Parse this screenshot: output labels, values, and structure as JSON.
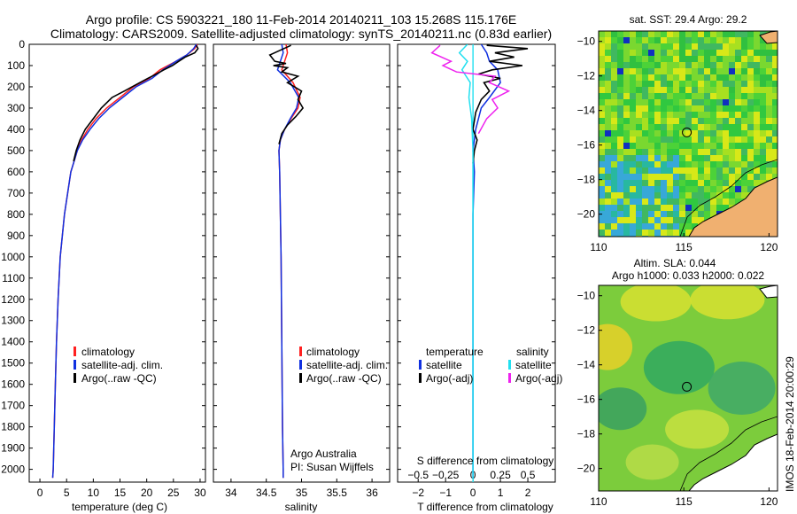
{
  "title": {
    "line1": "Argo profile: CS 5903221_180 11-Feb-2014 20140211_103 15.268S 115.176E",
    "line2": "Climatology: CARS2009. Satellite-adjusted climatology: synTS_20140211.nc (0.83d earlier)"
  },
  "side_stamp": "IMOS 18-Feb-2014 20:00:29",
  "colors": {
    "clim": "#ff2020",
    "satadj": "#1030e0",
    "argo": "#000000",
    "sat_salinity": "#22e0f0",
    "argo_adj_salinity": "#ee22ee"
  },
  "chart_data": [
    {
      "id": "temperature",
      "type": "line",
      "xlabel": "temperature (deg C)",
      "ylabel": "",
      "xlim": [
        -2,
        31
      ],
      "ylim": [
        2060,
        0
      ],
      "xticks": [
        0,
        5,
        10,
        15,
        20,
        25,
        30
      ],
      "yticks": [
        0,
        100,
        200,
        300,
        400,
        500,
        600,
        700,
        800,
        900,
        1000,
        1100,
        1200,
        1300,
        1400,
        1500,
        1600,
        1700,
        1800,
        1900,
        2000
      ],
      "legend": [
        "climatology",
        "satellite-adj. clim.",
        "Argo(..raw -QC)"
      ],
      "series": [
        {
          "name": "climatology",
          "color_key": "clim",
          "x": [
            29.5,
            29.0,
            27.5,
            25.5,
            22.5,
            20.5,
            17.5,
            15.0,
            12.5,
            10.5,
            9.0,
            7.8,
            7.0,
            6.4,
            5.8,
            5.2,
            4.6,
            4.2,
            3.8,
            3.4,
            3.1,
            2.9,
            2.7,
            2.5,
            2.4
          ],
          "y": [
            0,
            20,
            50,
            80,
            120,
            160,
            200,
            250,
            300,
            350,
            400,
            450,
            500,
            550,
            600,
            700,
            800,
            900,
            1000,
            1200,
            1400,
            1600,
            1800,
            2000,
            2040
          ]
        },
        {
          "name": "satellite-adj. clim.",
          "color_key": "satadj",
          "x": [
            29.3,
            28.8,
            27.5,
            25.5,
            23.0,
            21.0,
            18.0,
            15.5,
            13.0,
            11.0,
            9.4,
            8.0,
            7.0,
            6.4,
            5.8,
            5.2,
            4.6,
            4.2,
            3.8,
            3.4,
            3.1,
            2.9,
            2.7,
            2.5,
            2.4
          ],
          "y": [
            0,
            20,
            50,
            80,
            120,
            160,
            200,
            250,
            300,
            350,
            400,
            450,
            500,
            550,
            600,
            700,
            800,
            900,
            1000,
            1200,
            1400,
            1600,
            1800,
            2000,
            2040
          ]
        },
        {
          "name": "Argo(..raw -QC)",
          "color_key": "argo",
          "x": [
            29.3,
            29.6,
            29.0,
            27.2,
            26.0,
            24.8,
            23.2,
            21.8,
            20.2,
            18.0,
            15.8,
            13.5,
            11.5,
            10.0,
            8.5,
            7.5,
            6.8,
            6.3
          ],
          "y": [
            5,
            20,
            40,
            60,
            80,
            100,
            120,
            140,
            160,
            190,
            220,
            250,
            300,
            350,
            400,
            450,
            500,
            550
          ]
        }
      ]
    },
    {
      "id": "salinity",
      "type": "line",
      "xlabel": "salinity",
      "ylabel": "",
      "xlim": [
        33.75,
        36.25
      ],
      "ylim": [
        2060,
        0
      ],
      "xticks": [
        34,
        34.5,
        35,
        35.5,
        36
      ],
      "legend": [
        "climatology",
        "satellite-adj. clim.",
        "Argo(..raw -QC)"
      ],
      "annotation": [
        "Argo Australia",
        "PI: Susan Wijffels"
      ],
      "series": [
        {
          "name": "climatology",
          "color_key": "clim",
          "x": [
            34.78,
            34.8,
            34.76,
            34.72,
            34.88,
            34.98,
            34.95,
            34.85,
            34.76,
            34.7,
            34.68,
            34.69,
            34.7,
            34.71,
            34.72,
            34.73,
            34.74,
            34.74
          ],
          "y": [
            0,
            40,
            80,
            120,
            180,
            250,
            300,
            350,
            400,
            450,
            500,
            600,
            800,
            1000,
            1400,
            1800,
            2000,
            2040
          ]
        },
        {
          "name": "satellite-adj. clim.",
          "color_key": "satadj",
          "x": [
            34.72,
            34.74,
            34.7,
            34.66,
            34.84,
            34.96,
            34.93,
            34.84,
            34.76,
            34.7,
            34.68,
            34.69,
            34.7,
            34.71,
            34.72,
            34.73,
            34.74,
            34.74
          ],
          "y": [
            0,
            40,
            80,
            120,
            180,
            250,
            300,
            350,
            400,
            450,
            500,
            600,
            800,
            1000,
            1400,
            1800,
            2000,
            2040
          ]
        },
        {
          "name": "Argo(..raw -QC)",
          "color_key": "argo",
          "x": [
            34.85,
            34.55,
            34.62,
            34.78,
            34.6,
            34.8,
            34.72,
            34.95,
            34.8,
            35.0,
            34.95,
            35.02,
            34.92,
            34.8,
            34.72,
            34.68
          ],
          "y": [
            5,
            50,
            80,
            90,
            100,
            110,
            130,
            150,
            180,
            220,
            260,
            300,
            340,
            380,
            420,
            470
          ]
        }
      ]
    },
    {
      "id": "difference",
      "type": "line",
      "xlabel": "T difference from climatology",
      "x2label": "S difference from climatology",
      "xlim": [
        -2.75,
        3.0
      ],
      "ylim": [
        2060,
        0
      ],
      "xticks": [
        -2,
        -1,
        0,
        1,
        2
      ],
      "xtick_labels": [
        "−2",
        "−1",
        "0",
        "1",
        "2"
      ],
      "x2ticks_pos": [
        -2,
        -1,
        0,
        1,
        2
      ],
      "x2tick_labels": [
        "−0.5",
        "−0.25",
        "0",
        "0.25",
        "0.5"
      ],
      "legend_temperature": {
        "title": "temperature",
        "items": [
          "satellite",
          "Argo(-adj)"
        ]
      },
      "legend_salinity": {
        "title": "salinity",
        "items": [
          "satellite",
          "Argo(-adj)"
        ]
      },
      "series": [
        {
          "name": "temperature satellite",
          "color_key": "satadj",
          "x": [
            0.3,
            0.5,
            0.6,
            0.9,
            1.0,
            0.6,
            0.3,
            0.1,
            0.0,
            0.05,
            0.0,
            0.0,
            0.0,
            0.0
          ],
          "y": [
            0,
            40,
            80,
            120,
            180,
            250,
            300,
            400,
            500,
            600,
            800,
            1200,
            1600,
            2040
          ]
        },
        {
          "name": "temperature Argo(-adj)",
          "color_key": "argo",
          "x": [
            0.5,
            2.0,
            0.8,
            1.5,
            0.6,
            1.8,
            0.7,
            0.2,
            1.0,
            0.4,
            0.6,
            0.3,
            0.1,
            0.0,
            0.15,
            0.05,
            0.0
          ],
          "y": [
            5,
            20,
            40,
            60,
            80,
            100,
            120,
            140,
            160,
            180,
            220,
            260,
            320,
            400,
            450,
            500,
            560
          ]
        },
        {
          "name": "salinity satellite",
          "color_key": "sat_salinity",
          "x": [
            -0.2,
            -0.5,
            -0.2,
            -0.4,
            -0.1,
            -0.15,
            -0.05,
            0.0,
            0.0,
            0.0
          ],
          "y": [
            0,
            40,
            80,
            120,
            180,
            250,
            350,
            500,
            1000,
            2040
          ]
        },
        {
          "name": "salinity Argo(-adj)",
          "color_key": "argo_adj_salinity",
          "x": [
            -1.2,
            -1.5,
            -0.8,
            -1.1,
            -0.6,
            0.8,
            0.6,
            1.3,
            0.7,
            0.9,
            0.5,
            0.2
          ],
          "y": [
            5,
            40,
            80,
            100,
            130,
            150,
            180,
            220,
            260,
            300,
            350,
            420
          ]
        }
      ]
    },
    {
      "id": "sst_map",
      "type": "heatmap",
      "title": "sat. SST: 29.4  Argo: 29.2",
      "xlim": [
        110,
        120.5
      ],
      "ylim": [
        -21.3,
        -9.4
      ],
      "xticks": [
        110,
        115,
        120
      ],
      "yticks": [
        -10,
        -12,
        -14,
        -16,
        -18,
        -20
      ],
      "ytick_labels": [
        "−10",
        "−12",
        "−14",
        "−16",
        "−18",
        "−20"
      ],
      "marker": {
        "lon": 115.176,
        "lat": -15.268
      }
    },
    {
      "id": "sla_map",
      "type": "heatmap",
      "title_line1": "Altim. SLA: 0.044",
      "title_line2": "Argo h1000: 0.033 h2000: 0.022",
      "xlim": [
        110,
        120.5
      ],
      "ylim": [
        -21.3,
        -9.4
      ],
      "xticks": [
        110,
        115,
        120
      ],
      "yticks": [
        -10,
        -12,
        -14,
        -16,
        -18,
        -20
      ],
      "ytick_labels": [
        "−10",
        "−12",
        "−14",
        "−16",
        "−18",
        "−20"
      ],
      "marker": {
        "lon": 115.176,
        "lat": -15.268
      }
    }
  ]
}
